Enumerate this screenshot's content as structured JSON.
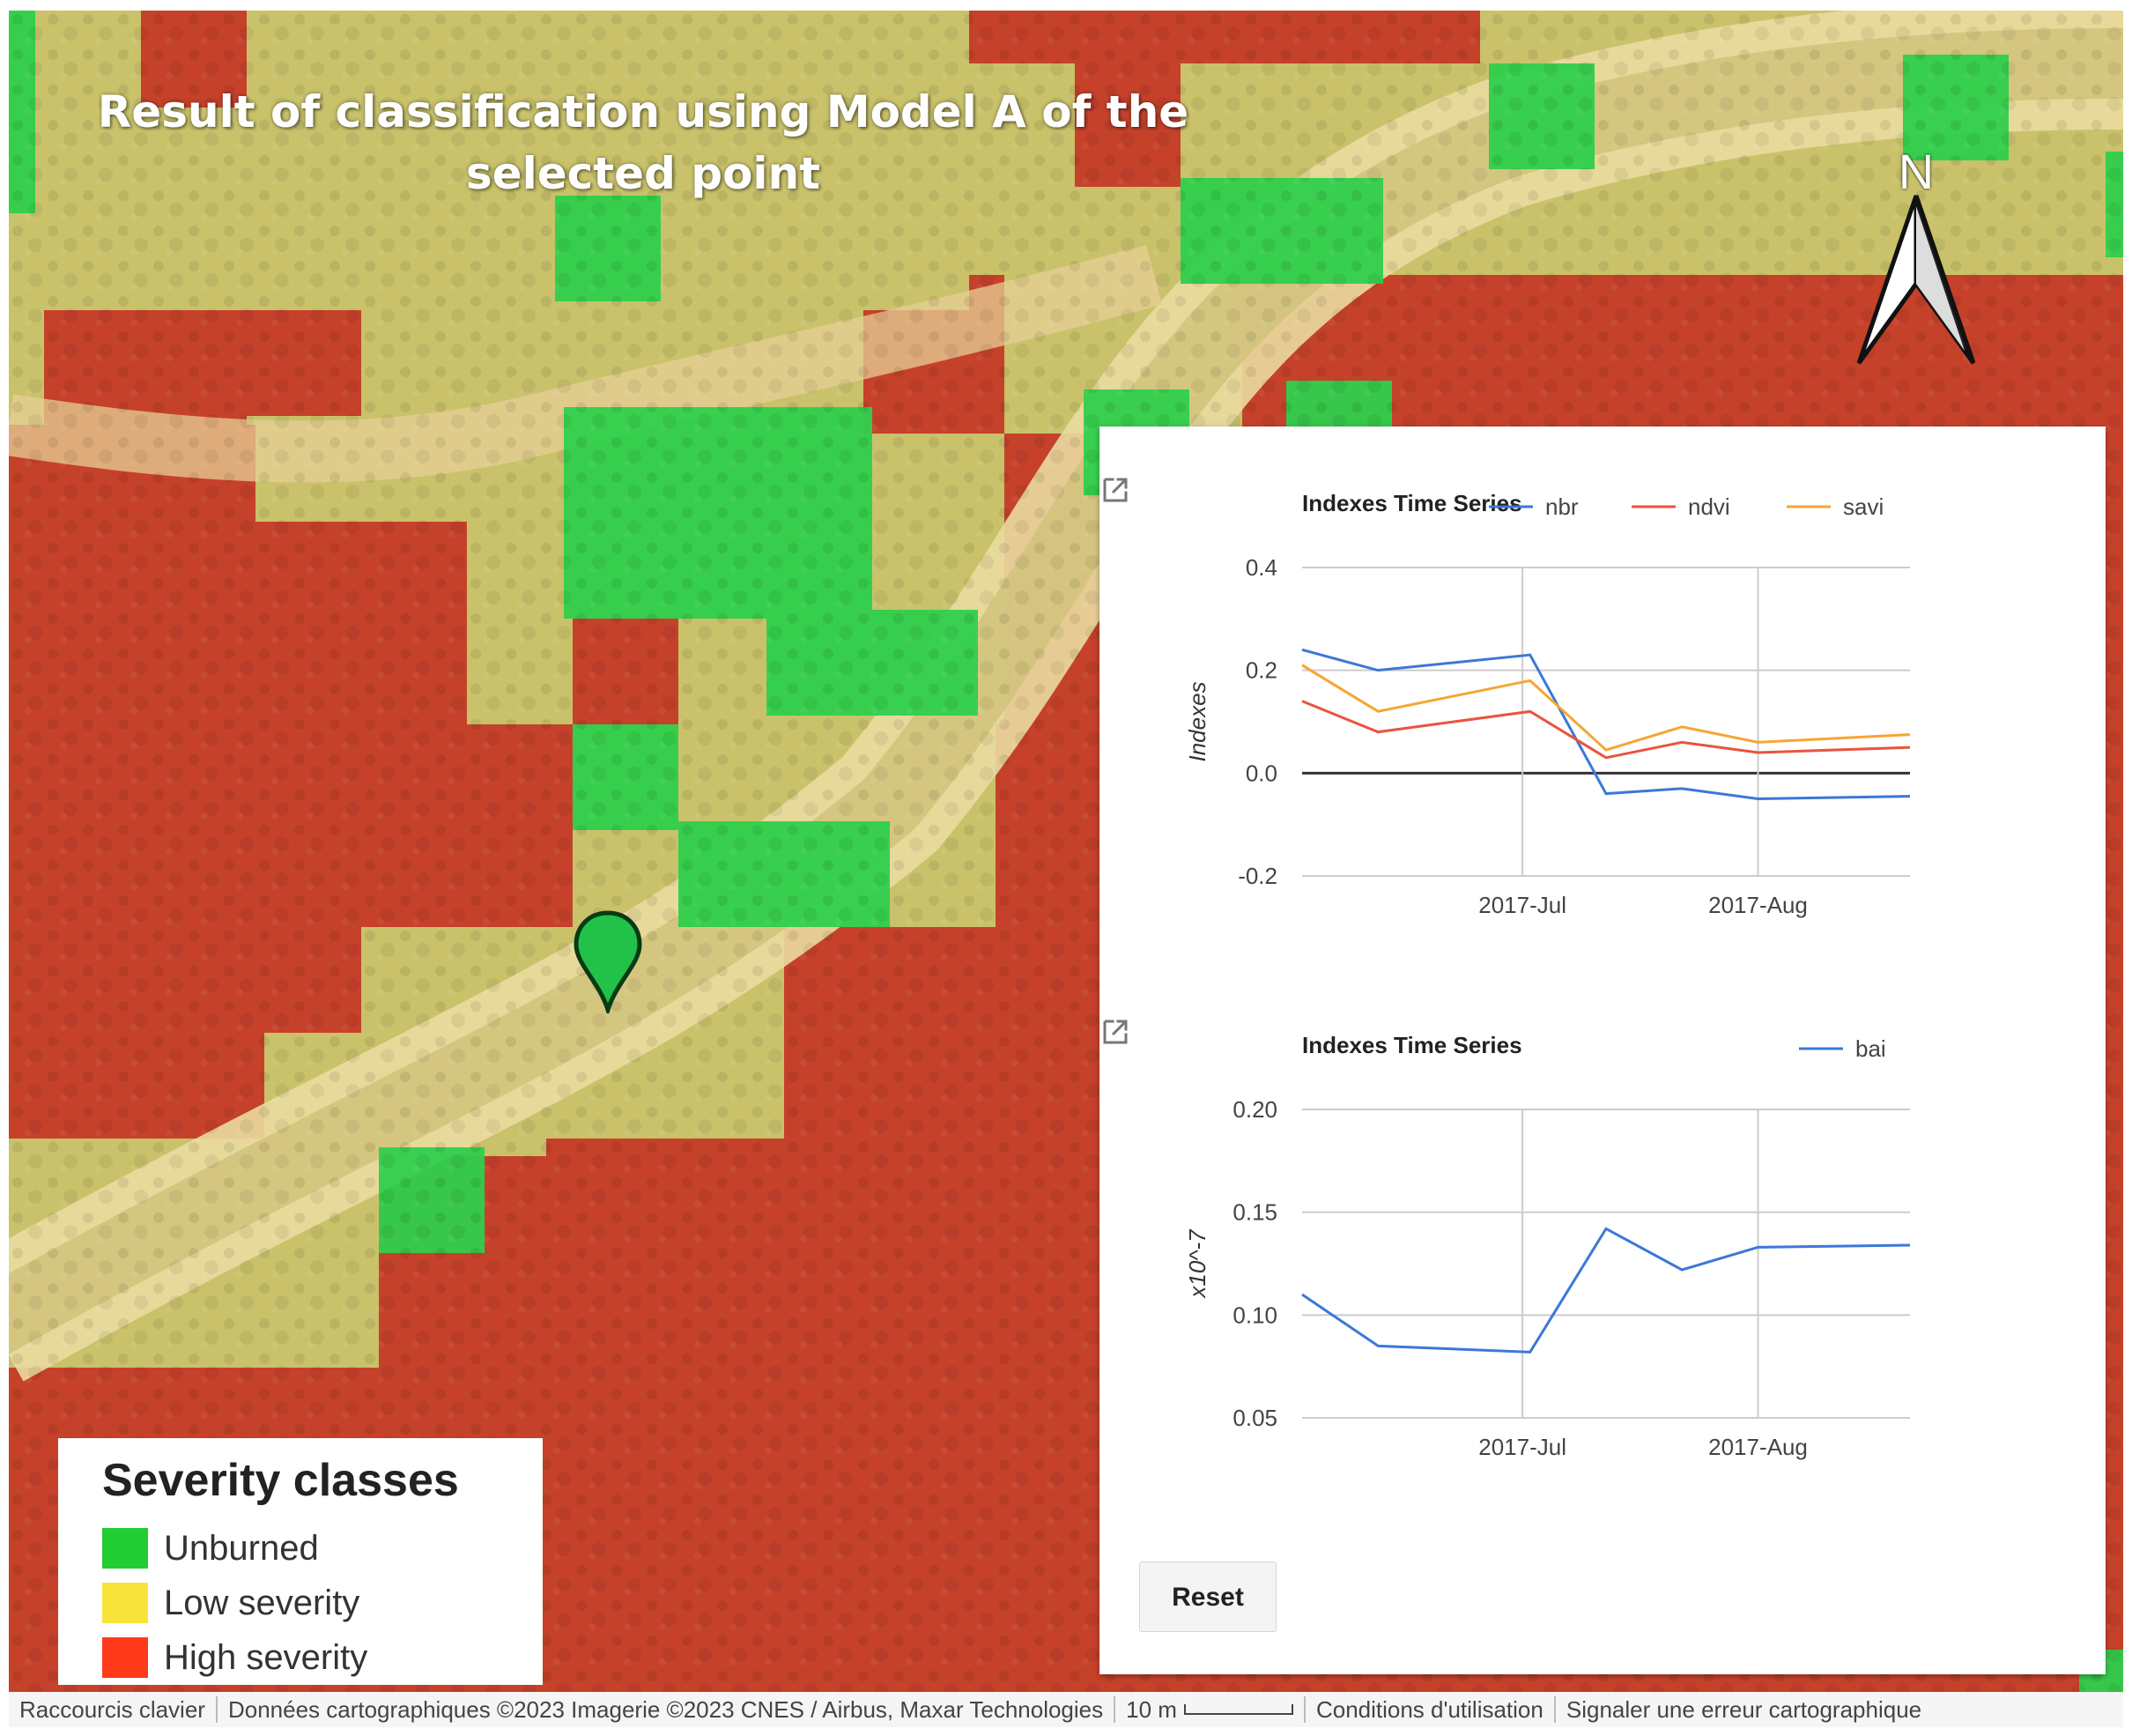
{
  "map": {
    "title_line1": "Result of classification using Model A of the",
    "title_line2": "selected point",
    "north_label": "N",
    "marker_icon": "map-marker-icon",
    "marker_color": "#22c24a",
    "overlay_colors": {
      "unburned": "#22d64a",
      "low": "#d8d76a",
      "high": "#d2462a"
    }
  },
  "legend": {
    "title": "Severity classes",
    "items": [
      {
        "label": "Unburned",
        "color": "#22cc33"
      },
      {
        "label": "Low severity",
        "color": "#f7e33a"
      },
      {
        "label": "High severity",
        "color": "#ff3a1a"
      }
    ]
  },
  "panel": {
    "popout_icon": "open-in-new-icon",
    "reset_label": "Reset"
  },
  "chart_data": [
    {
      "type": "line",
      "title": "Indexes Time Series",
      "ylabel": "Indexes",
      "xlabel": "",
      "ylim": [
        -0.2,
        0.4
      ],
      "yticks": [
        "0.4",
        "0.2",
        "0.0",
        "-0.2"
      ],
      "xticks": [
        "2017-Jul",
        "2017-Aug"
      ],
      "legend_position": "top-right",
      "grid": true,
      "x": [
        "2017-06-02",
        "2017-06-12",
        "2017-07-02",
        "2017-07-12",
        "2017-07-22",
        "2017-08-01",
        "2017-08-21"
      ],
      "series": [
        {
          "name": "nbr",
          "color": "#3b78d8",
          "values": [
            0.24,
            0.2,
            0.23,
            -0.04,
            -0.03,
            -0.05,
            -0.045
          ]
        },
        {
          "name": "ndvi",
          "color": "#e8553d",
          "values": [
            0.14,
            0.08,
            0.12,
            0.03,
            0.06,
            0.04,
            0.05
          ]
        },
        {
          "name": "savi",
          "color": "#f6a533",
          "values": [
            0.21,
            0.12,
            0.18,
            0.045,
            0.09,
            0.06,
            0.075
          ]
        }
      ]
    },
    {
      "type": "line",
      "title": "Indexes Time Series",
      "ylabel": "x10^-7",
      "xlabel": "",
      "ylim": [
        0.05,
        0.2
      ],
      "yticks": [
        "0.20",
        "0.15",
        "0.10",
        "0.05"
      ],
      "xticks": [
        "2017-Jul",
        "2017-Aug"
      ],
      "legend_position": "top-right",
      "grid": true,
      "x": [
        "2017-06-02",
        "2017-06-12",
        "2017-07-02",
        "2017-07-12",
        "2017-07-22",
        "2017-08-01",
        "2017-08-21"
      ],
      "series": [
        {
          "name": "bai",
          "color": "#3b78d8",
          "values": [
            0.11,
            0.085,
            0.082,
            0.142,
            0.122,
            0.133,
            0.134
          ]
        }
      ]
    }
  ],
  "footer": {
    "keyboard_shortcuts": "Raccourcis clavier",
    "map_data": "Données cartographiques ©2023 Imagerie ©2023 CNES / Airbus, Maxar Technologies",
    "scale_label": "10 m",
    "terms": "Conditions d'utilisation",
    "report_error": "Signaler une erreur cartographique"
  }
}
